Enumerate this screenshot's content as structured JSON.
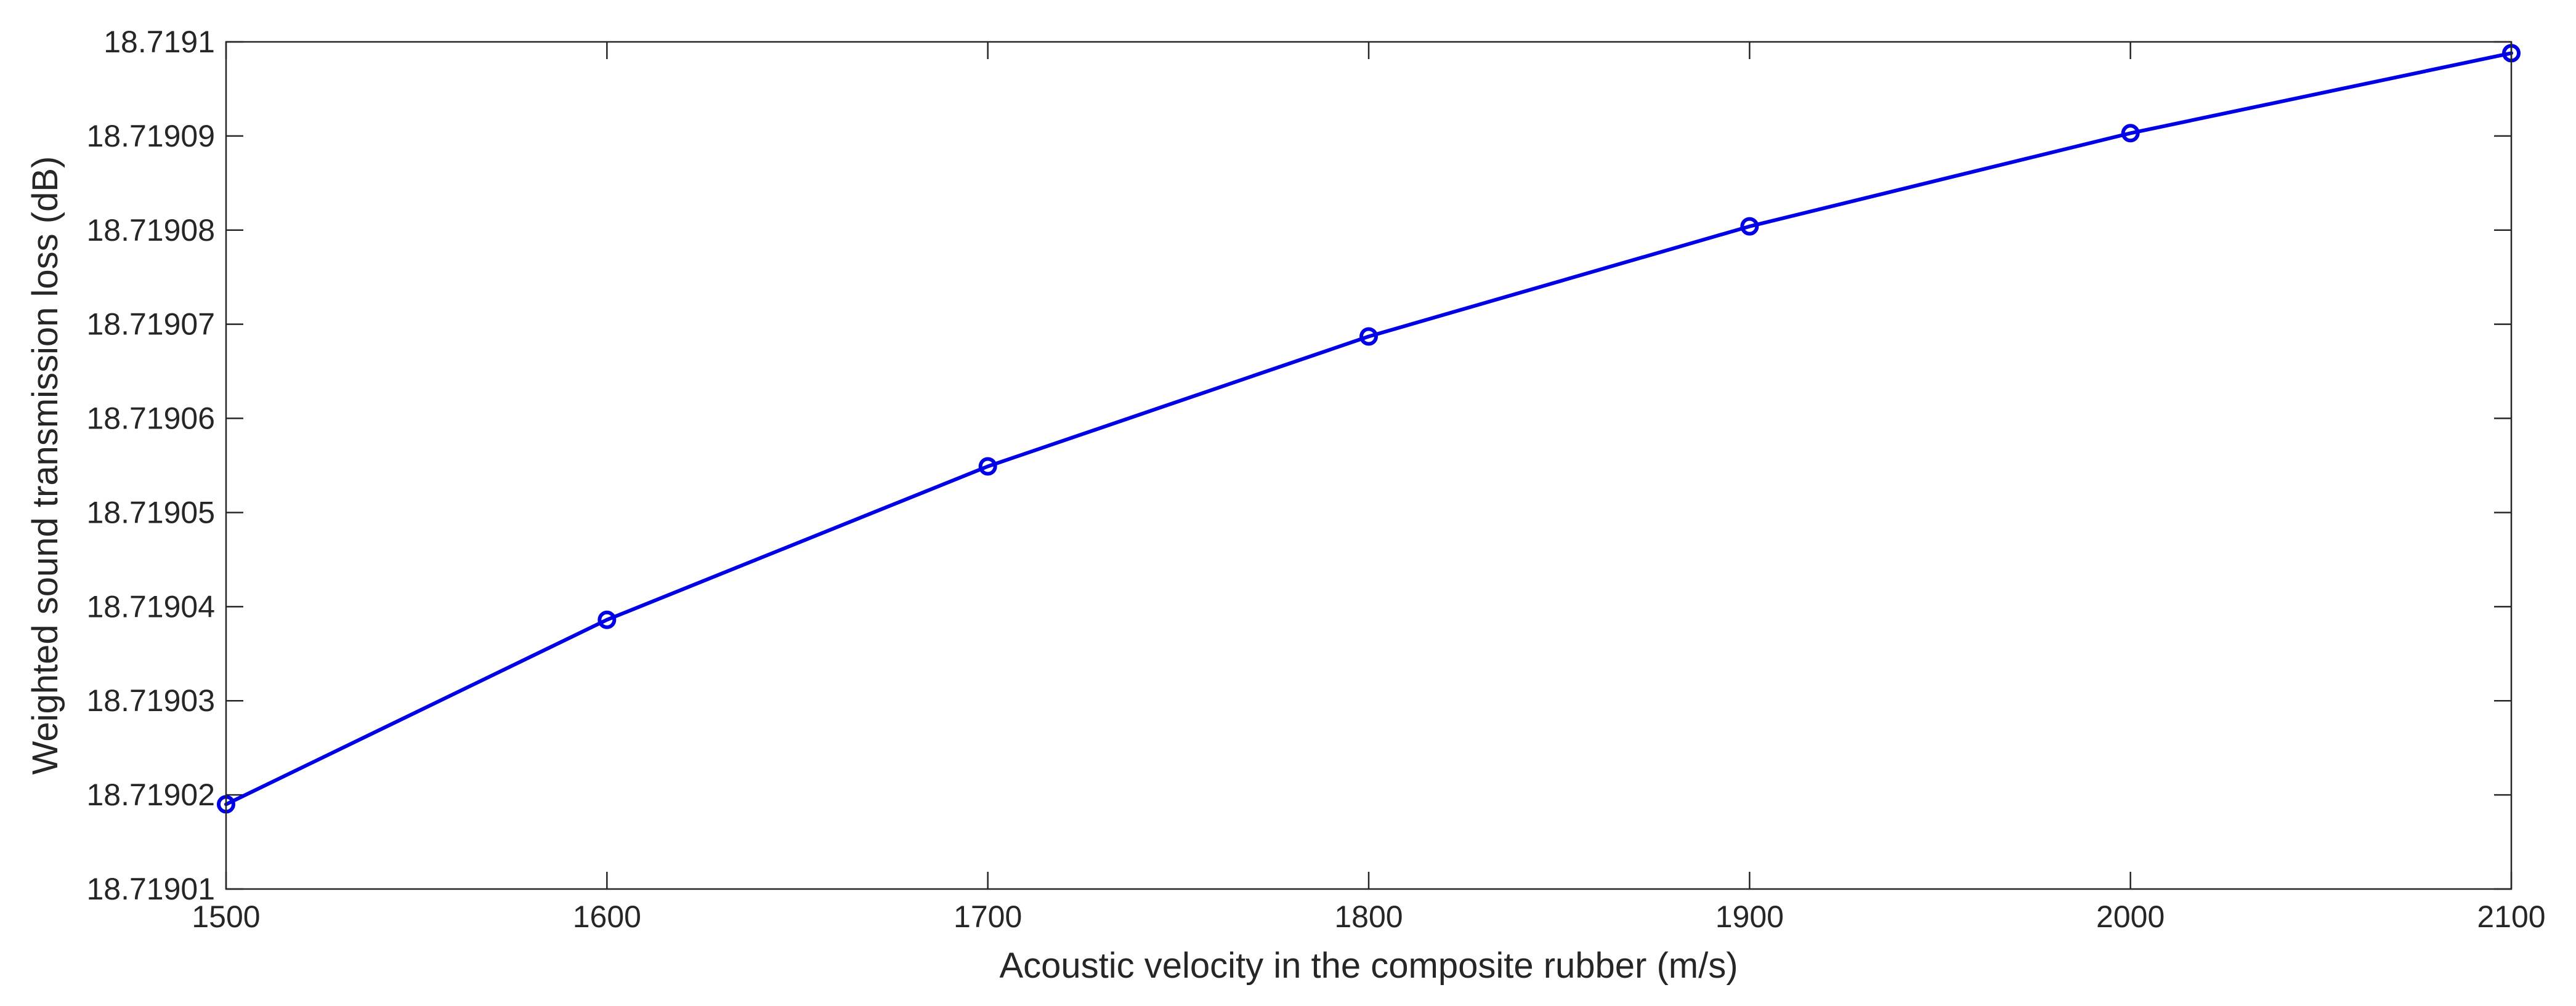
{
  "chart_data": {
    "type": "line",
    "title": "",
    "xlabel": "Acoustic velocity in the composite rubber (m/s)",
    "ylabel": "Weighted sound transmission loss (dB)",
    "xlim": [
      1500,
      2100
    ],
    "ylim": [
      18.71901,
      18.7191
    ],
    "x_ticks": [
      1500,
      1600,
      1700,
      1800,
      1900,
      2000,
      2100
    ],
    "x_tick_labels": [
      "1500",
      "1600",
      "1700",
      "1800",
      "1900",
      "2000",
      "2100"
    ],
    "y_ticks": [
      18.71901,
      18.71902,
      18.71903,
      18.71904,
      18.71905,
      18.71906,
      18.71907,
      18.71908,
      18.71909,
      18.7191
    ],
    "y_tick_labels": [
      "18.71901",
      "18.71902",
      "18.71903",
      "18.71904",
      "18.71905",
      "18.71906",
      "18.71907",
      "18.71908",
      "18.71909",
      "18.7191"
    ],
    "grid": false,
    "legend": "none",
    "series": [
      {
        "color": "#0000e6",
        "marker": "circle",
        "x": [
          1500,
          1600,
          1700,
          1800,
          1900,
          2000,
          2100
        ],
        "y": [
          18.719019,
          18.7190386,
          18.7190549,
          18.7190687,
          18.7190804,
          18.7190903,
          18.7190988
        ]
      }
    ]
  }
}
